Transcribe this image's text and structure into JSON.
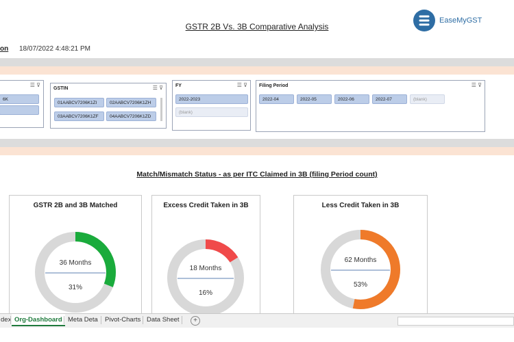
{
  "header": {
    "title": "GSTR 2B Vs. 3B Comparative Analysis",
    "brand": "EaseMyGST",
    "label_fragment": "on",
    "timestamp": "18/07/2022 4:48:21 PM"
  },
  "slicers": {
    "partial": {
      "chips": [
        "6K"
      ]
    },
    "gstin": {
      "title": "GSTIN",
      "chips": [
        "01AABCV7206K1ZI",
        "02AABCV7206K1ZH",
        "03AABCV7206K1ZF",
        "04AABCV7206K1ZD"
      ]
    },
    "fy": {
      "title": "FY",
      "chips": [
        "2022-2023",
        "(blank)"
      ]
    },
    "filing_period": {
      "title": "Filing Period",
      "chips": [
        "2022-04",
        "2022-05",
        "2022-06",
        "2022-07",
        "(blank)"
      ]
    }
  },
  "section_title": "Match/Mismatch Status - as per ITC Claimed in 3B (filing Period count)",
  "cards": [
    {
      "title": "GSTR 2B and 3B Matched",
      "months_text": "36 Months",
      "percent_text": "31%",
      "fraction": 0.31,
      "color": "#1aab3c"
    },
    {
      "title": "Excess Credit Taken in 3B",
      "months_text": "18 Months",
      "percent_text": "16%",
      "fraction": 0.16,
      "color": "#f04a4a"
    },
    {
      "title": "Less Credit Taken in 3B",
      "months_text": "62 Months",
      "percent_text": "53%",
      "fraction": 0.53,
      "color": "#ef7a2a"
    }
  ],
  "tabs": [
    "dex",
    "Org-Dashboard",
    "Meta Deta",
    "Pivot-Charts",
    "Data Sheet"
  ],
  "active_tab": "Org-Dashboard",
  "colors": {
    "gauge_track": "#d8d8d8",
    "divider": "#5b7fb0",
    "band_grey": "#dcdcdc",
    "band_peach": "#fbe3d3",
    "chip_fill": "#bccde8"
  }
}
